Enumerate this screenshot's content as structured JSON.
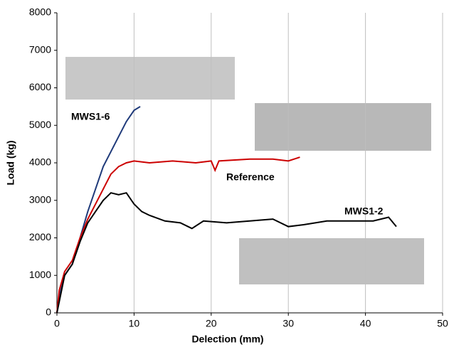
{
  "chart_data": {
    "type": "line",
    "x_label": "Delection (mm)",
    "y_label": "Load (kg)",
    "xlim": [
      0,
      50
    ],
    "xticks": [
      0,
      10,
      20,
      30,
      40,
      50
    ],
    "ylim": [
      0,
      8000
    ],
    "yticks": [
      0,
      1000,
      2000,
      3000,
      4000,
      5000,
      6000,
      7000,
      8000
    ],
    "grid": "x",
    "series": [
      {
        "name": "MWS1-6",
        "color": "#1f3a7a",
        "x": [
          0,
          0.5,
          1,
          2,
          3,
          4,
          5,
          6,
          7,
          8,
          9,
          10,
          10.8
        ],
        "values": [
          0,
          600,
          1000,
          1300,
          2000,
          2700,
          3300,
          3900,
          4300,
          4700,
          5100,
          5400,
          5500
        ]
      },
      {
        "name": "Reference",
        "color": "#cc0000",
        "x": [
          0,
          0.3,
          1,
          2,
          3,
          4,
          5,
          6,
          7,
          8,
          9,
          10,
          12,
          15,
          18,
          20,
          20.5,
          21,
          25,
          28,
          30,
          31.5
        ],
        "values": [
          0,
          600,
          1100,
          1400,
          2000,
          2500,
          2900,
          3300,
          3700,
          3900,
          4000,
          4050,
          4000,
          4050,
          4000,
          4050,
          3800,
          4050,
          4100,
          4100,
          4050,
          4150
        ]
      },
      {
        "name": "MWS1-2",
        "color": "#000000",
        "x": [
          0,
          1,
          2,
          3,
          4,
          5,
          6,
          7,
          8,
          9,
          10,
          11,
          12,
          14,
          16,
          17.5,
          19,
          22,
          25,
          28,
          30,
          32,
          35,
          38,
          41,
          43,
          44
        ],
        "values": [
          0,
          1000,
          1300,
          1900,
          2400,
          2700,
          3000,
          3200,
          3150,
          3200,
          2900,
          2700,
          2600,
          2450,
          2400,
          2250,
          2450,
          2400,
          2450,
          2500,
          2300,
          2350,
          2450,
          2450,
          2450,
          2550,
          2300
        ]
      }
    ]
  }
}
